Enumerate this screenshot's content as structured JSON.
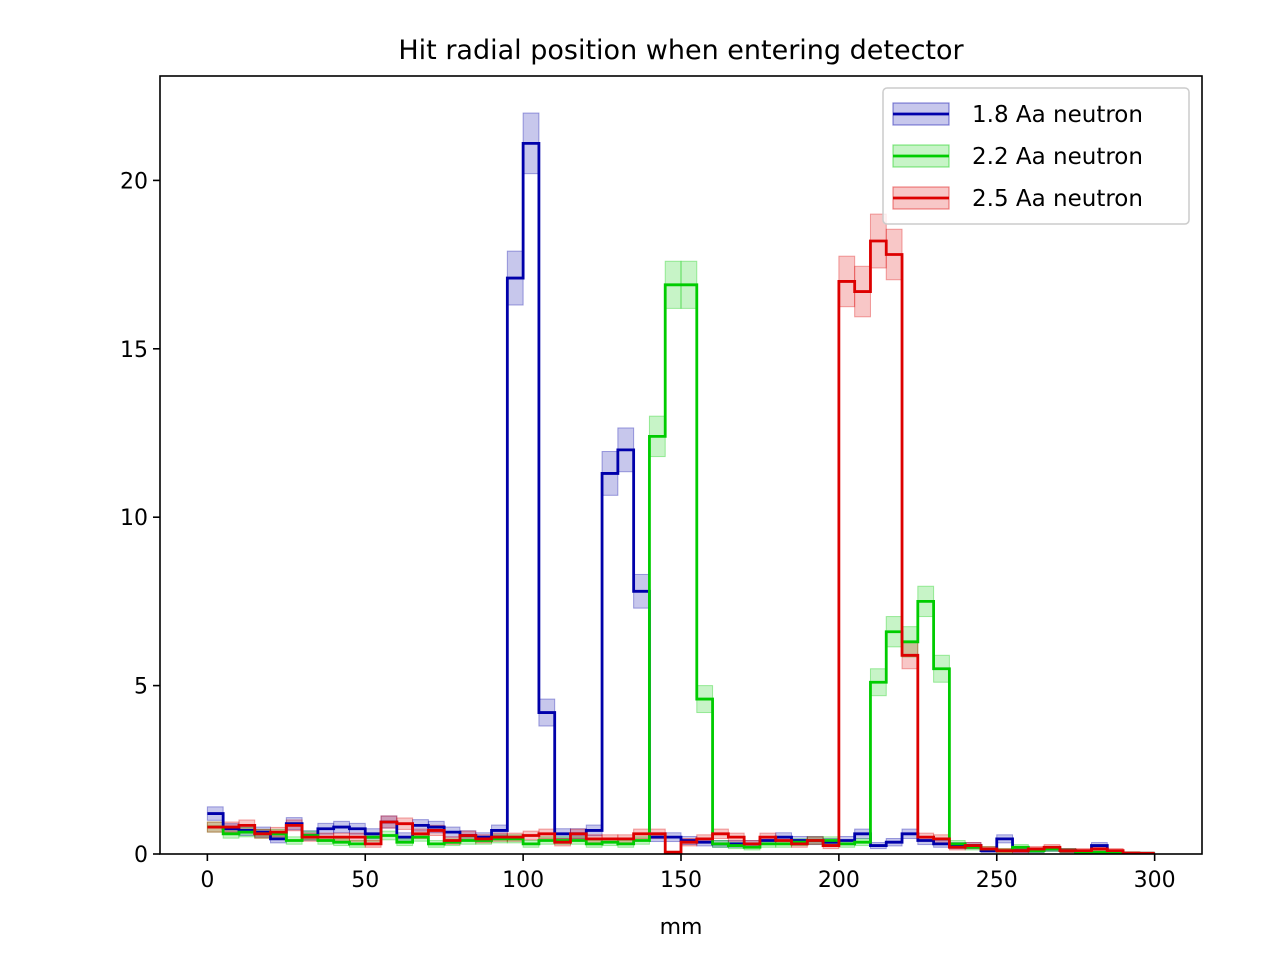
{
  "chart_data": {
    "type": "line",
    "style": "step histogram with shaded uncertainty bands",
    "title": "Hit radial position when entering detector",
    "xlabel": "mm",
    "ylabel": "",
    "xlim": [
      -15,
      315
    ],
    "ylim": [
      0,
      23.1
    ],
    "xticks": [
      0,
      50,
      100,
      150,
      200,
      250,
      300
    ],
    "yticks": [
      0,
      5,
      10,
      15,
      20
    ],
    "grid": false,
    "legend_position": "top-right",
    "bin_edges": [
      0,
      5,
      10,
      15,
      20,
      25,
      30,
      35,
      40,
      45,
      50,
      55,
      60,
      65,
      70,
      75,
      80,
      85,
      90,
      95,
      100,
      105,
      110,
      115,
      120,
      125,
      130,
      135,
      140,
      145,
      150,
      155,
      160,
      165,
      170,
      175,
      180,
      185,
      190,
      195,
      200,
      205,
      210,
      215,
      220,
      225,
      230,
      235,
      240,
      245,
      250,
      255,
      260,
      265,
      270,
      275,
      280,
      285,
      290,
      295,
      300
    ],
    "series": [
      {
        "name": "1.8 Aa neutron",
        "color": "#0000aa",
        "band_color": "#0000aa",
        "values": [
          1.2,
          0.75,
          0.7,
          0.65,
          0.45,
          0.9,
          0.55,
          0.75,
          0.8,
          0.75,
          0.6,
          0.95,
          0.5,
          0.85,
          0.8,
          0.65,
          0.55,
          0.5,
          0.7,
          17.1,
          21.1,
          4.2,
          0.6,
          0.6,
          0.7,
          11.3,
          12.0,
          7.8,
          0.5,
          0.5,
          0.4,
          0.35,
          0.3,
          0.3,
          0.3,
          0.4,
          0.5,
          0.4,
          0.4,
          0.35,
          0.4,
          0.6,
          0.25,
          0.35,
          0.6,
          0.4,
          0.3,
          0.25,
          0.25,
          0.1,
          0.45,
          0.1,
          0.1,
          0.15,
          0.1,
          0.05,
          0.25,
          0.05,
          0.03,
          0.02
        ],
        "errors": [
          0.2,
          0.15,
          0.15,
          0.15,
          0.12,
          0.18,
          0.14,
          0.16,
          0.17,
          0.16,
          0.15,
          0.18,
          0.13,
          0.17,
          0.17,
          0.15,
          0.14,
          0.13,
          0.16,
          0.8,
          0.9,
          0.4,
          0.15,
          0.15,
          0.16,
          0.65,
          0.65,
          0.5,
          0.13,
          0.13,
          0.12,
          0.11,
          0.1,
          0.1,
          0.1,
          0.12,
          0.13,
          0.12,
          0.12,
          0.11,
          0.12,
          0.14,
          0.09,
          0.11,
          0.14,
          0.12,
          0.1,
          0.09,
          0.09,
          0.06,
          0.12,
          0.06,
          0.06,
          0.07,
          0.06,
          0.04,
          0.09,
          0.04,
          0.03,
          0.02
        ]
      },
      {
        "name": "2.2 Aa neutron",
        "color": "#00cc00",
        "band_color": "#00cc00",
        "values": [
          0.8,
          0.6,
          0.65,
          0.6,
          0.6,
          0.4,
          0.55,
          0.4,
          0.35,
          0.3,
          0.5,
          0.55,
          0.35,
          0.5,
          0.3,
          0.35,
          0.4,
          0.4,
          0.45,
          0.45,
          0.3,
          0.4,
          0.4,
          0.4,
          0.3,
          0.35,
          0.3,
          0.4,
          12.4,
          16.9,
          16.9,
          4.6,
          0.3,
          0.25,
          0.2,
          0.3,
          0.3,
          0.35,
          0.4,
          0.4,
          0.3,
          0.35,
          5.1,
          6.6,
          6.3,
          7.5,
          5.5,
          0.3,
          0.2,
          0.15,
          0.1,
          0.2,
          0.1,
          0.15,
          0.1,
          0.05,
          0.05,
          0.05,
          0.03,
          0.02
        ],
        "errors": [
          0.15,
          0.13,
          0.14,
          0.13,
          0.13,
          0.11,
          0.13,
          0.11,
          0.1,
          0.1,
          0.12,
          0.13,
          0.1,
          0.12,
          0.1,
          0.1,
          0.11,
          0.11,
          0.12,
          0.12,
          0.1,
          0.11,
          0.11,
          0.11,
          0.1,
          0.1,
          0.1,
          0.11,
          0.6,
          0.7,
          0.7,
          0.4,
          0.1,
          0.09,
          0.08,
          0.1,
          0.1,
          0.1,
          0.11,
          0.11,
          0.1,
          0.1,
          0.4,
          0.45,
          0.45,
          0.45,
          0.4,
          0.1,
          0.08,
          0.07,
          0.06,
          0.08,
          0.06,
          0.07,
          0.06,
          0.04,
          0.04,
          0.04,
          0.03,
          0.02
        ]
      },
      {
        "name": "2.5 Aa neutron",
        "color": "#dd0000",
        "band_color": "#dd0000",
        "values": [
          0.8,
          0.8,
          0.85,
          0.6,
          0.65,
          0.85,
          0.5,
          0.5,
          0.5,
          0.5,
          0.3,
          0.95,
          0.9,
          0.6,
          0.7,
          0.4,
          0.55,
          0.45,
          0.5,
          0.5,
          0.55,
          0.6,
          0.35,
          0.6,
          0.45,
          0.45,
          0.45,
          0.6,
          0.6,
          0.05,
          0.35,
          0.45,
          0.6,
          0.5,
          0.3,
          0.5,
          0.4,
          0.3,
          0.4,
          0.25,
          17.0,
          16.7,
          18.2,
          17.8,
          5.9,
          0.5,
          0.45,
          0.2,
          0.25,
          0.15,
          0.1,
          0.1,
          0.15,
          0.2,
          0.1,
          0.1,
          0.15,
          0.1,
          0.03,
          0.02
        ],
        "errors": [
          0.15,
          0.15,
          0.16,
          0.13,
          0.14,
          0.16,
          0.12,
          0.12,
          0.12,
          0.12,
          0.1,
          0.18,
          0.17,
          0.14,
          0.15,
          0.11,
          0.13,
          0.12,
          0.12,
          0.12,
          0.13,
          0.14,
          0.11,
          0.14,
          0.12,
          0.12,
          0.12,
          0.14,
          0.14,
          0.04,
          0.11,
          0.12,
          0.14,
          0.12,
          0.1,
          0.12,
          0.11,
          0.1,
          0.11,
          0.09,
          0.75,
          0.75,
          0.8,
          0.75,
          0.4,
          0.12,
          0.12,
          0.08,
          0.09,
          0.07,
          0.06,
          0.06,
          0.07,
          0.08,
          0.06,
          0.06,
          0.07,
          0.06,
          0.03,
          0.02
        ]
      }
    ]
  }
}
